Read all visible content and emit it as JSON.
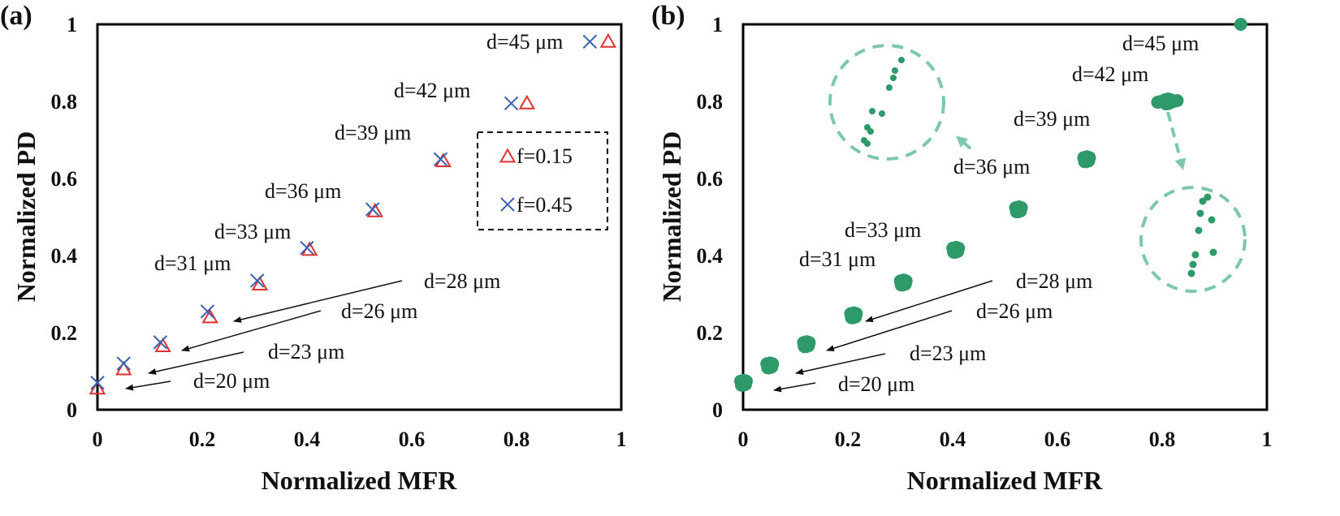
{
  "chart_data": [
    {
      "panel_label": "(a)",
      "type": "scatter",
      "xlabel": "Normalized MFR",
      "ylabel": "Normalized PD",
      "xlim": [
        0,
        1
      ],
      "ylim": [
        0,
        1
      ],
      "xticks": [
        "0",
        "0.2",
        "0.4",
        "0.6",
        "0.8",
        "1"
      ],
      "yticks": [
        "0",
        "0.2",
        "0.4",
        "0.6",
        "0.8",
        "1"
      ],
      "grid": false,
      "legend_position": "right",
      "colors": {
        "triangle": "#e03030",
        "cross": "#3a62b0"
      },
      "series": [
        {
          "name": "f=0.15",
          "marker": "triangle",
          "points": [
            [
              0.0,
              0.055
            ],
            [
              0.05,
              0.105
            ],
            [
              0.125,
              0.165
            ],
            [
              0.215,
              0.24
            ],
            [
              0.31,
              0.325
            ],
            [
              0.405,
              0.415
            ],
            [
              0.53,
              0.515
            ],
            [
              0.66,
              0.645
            ],
            [
              0.82,
              0.795
            ],
            [
              0.975,
              0.955
            ]
          ]
        },
        {
          "name": "f=0.45",
          "marker": "cross",
          "points": [
            [
              0.0,
              0.07
            ],
            [
              0.05,
              0.12
            ],
            [
              0.12,
              0.175
            ],
            [
              0.21,
              0.255
            ],
            [
              0.305,
              0.335
            ],
            [
              0.4,
              0.42
            ],
            [
              0.525,
              0.52
            ],
            [
              0.655,
              0.65
            ],
            [
              0.79,
              0.795
            ],
            [
              0.94,
              0.955
            ]
          ]
        }
      ],
      "annotations": [
        "d=20 μm",
        "d=23 μm",
        "d=26 μm",
        "d=28 μm",
        "d=31 μm",
        "d=33 μm",
        "d=36 μm",
        "d=39 μm",
        "d=42 μm",
        "d=45 μm"
      ]
    },
    {
      "panel_label": "(b)",
      "type": "scatter",
      "xlabel": "Normalized MFR",
      "ylabel": "Normalized PD",
      "xlim": [
        0,
        1
      ],
      "ylim": [
        0,
        1
      ],
      "xticks": [
        "0",
        "0.2",
        "0.4",
        "0.6",
        "0.8",
        "1"
      ],
      "yticks": [
        "0",
        "0.2",
        "0.4",
        "0.6",
        "0.8",
        "1"
      ],
      "grid": false,
      "colors": {
        "point": "#2e9a6a",
        "zoom": "#7cc9a9"
      },
      "clusters": [
        {
          "x": 0.0,
          "y": 0.07
        },
        {
          "x": 0.05,
          "y": 0.115
        },
        {
          "x": 0.12,
          "y": 0.17
        },
        {
          "x": 0.21,
          "y": 0.245
        },
        {
          "x": 0.305,
          "y": 0.33
        },
        {
          "x": 0.405,
          "y": 0.415
        },
        {
          "x": 0.525,
          "y": 0.52
        },
        {
          "x": 0.655,
          "y": 0.65
        },
        {
          "x": 0.81,
          "y": 0.8
        },
        {
          "x": 0.95,
          "y": 1.0
        }
      ],
      "annotations": [
        "d=20 μm",
        "d=23 μm",
        "d=26 μm",
        "d=28 μm",
        "d=31 μm",
        "d=33 μm",
        "d=36 μm",
        "d=39 μm",
        "d=42 μm",
        "d=45 μm"
      ]
    }
  ]
}
